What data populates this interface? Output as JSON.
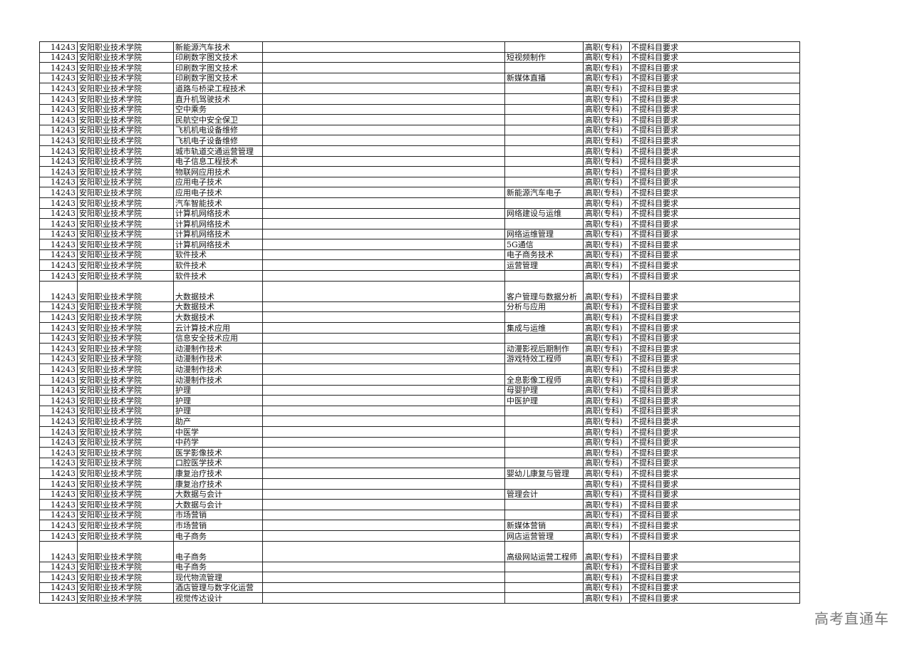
{
  "level": "高职(专科)",
  "requirement": "不提科目要求",
  "watermark": "高考直通车",
  "rows": [
    {
      "code": "14243",
      "school": "安阳职业技术学院",
      "major": "新能源汽车技术",
      "direction": ""
    },
    {
      "code": "14243",
      "school": "安阳职业技术学院",
      "major": "印刷数字图文技术",
      "direction": "短视频制作"
    },
    {
      "code": "14243",
      "school": "安阳职业技术学院",
      "major": "印刷数字图文技术",
      "direction": ""
    },
    {
      "code": "14243",
      "school": "安阳职业技术学院",
      "major": "印刷数字图文技术",
      "direction": "新媒体直播"
    },
    {
      "code": "14243",
      "school": "安阳职业技术学院",
      "major": "道路与桥梁工程技术",
      "direction": ""
    },
    {
      "code": "14243",
      "school": "安阳职业技术学院",
      "major": "直升机驾驶技术",
      "direction": ""
    },
    {
      "code": "14243",
      "school": "安阳职业技术学院",
      "major": "空中乘务",
      "direction": ""
    },
    {
      "code": "14243",
      "school": "安阳职业技术学院",
      "major": "民航空中安全保卫",
      "direction": ""
    },
    {
      "code": "14243",
      "school": "安阳职业技术学院",
      "major": "飞机机电设备维修",
      "direction": ""
    },
    {
      "code": "14243",
      "school": "安阳职业技术学院",
      "major": "飞机电子设备维修",
      "direction": ""
    },
    {
      "code": "14243",
      "school": "安阳职业技术学院",
      "major": "城市轨道交通运营管理",
      "direction": ""
    },
    {
      "code": "14243",
      "school": "安阳职业技术学院",
      "major": "电子信息工程技术",
      "direction": ""
    },
    {
      "code": "14243",
      "school": "安阳职业技术学院",
      "major": "物联网应用技术",
      "direction": ""
    },
    {
      "code": "14243",
      "school": "安阳职业技术学院",
      "major": "应用电子技术",
      "direction": ""
    },
    {
      "code": "14243",
      "school": "安阳职业技术学院",
      "major": "应用电子技术",
      "direction": "新能源汽车电子"
    },
    {
      "code": "14243",
      "school": "安阳职业技术学院",
      "major": "汽车智能技术",
      "direction": ""
    },
    {
      "code": "14243",
      "school": "安阳职业技术学院",
      "major": "计算机网络技术",
      "direction": "网络建设与运维"
    },
    {
      "code": "14243",
      "school": "安阳职业技术学院",
      "major": "计算机网络技术",
      "direction": ""
    },
    {
      "code": "14243",
      "school": "安阳职业技术学院",
      "major": "计算机网络技术",
      "direction": "网络运维管理"
    },
    {
      "code": "14243",
      "school": "安阳职业技术学院",
      "major": "计算机网络技术",
      "direction": "5G通信"
    },
    {
      "code": "14243",
      "school": "安阳职业技术学院",
      "major": "软件技术",
      "direction": "电子商务技术"
    },
    {
      "code": "14243",
      "school": "安阳职业技术学院",
      "major": "软件技术",
      "direction": "运营管理"
    },
    {
      "code": "14243",
      "school": "安阳职业技术学院",
      "major": "软件技术",
      "direction": ""
    },
    {
      "code": "14243",
      "school": "安阳职业技术学院",
      "major": "大数据技术",
      "direction": "客户管理与数据分析",
      "tall": true
    },
    {
      "code": "14243",
      "school": "安阳职业技术学院",
      "major": "大数据技术",
      "direction": "分析与应用"
    },
    {
      "code": "14243",
      "school": "安阳职业技术学院",
      "major": "大数据技术",
      "direction": ""
    },
    {
      "code": "14243",
      "school": "安阳职业技术学院",
      "major": "云计算技术应用",
      "direction": "集成与运维"
    },
    {
      "code": "14243",
      "school": "安阳职业技术学院",
      "major": "信息安全技术应用",
      "direction": ""
    },
    {
      "code": "14243",
      "school": "安阳职业技术学院",
      "major": "动漫制作技术",
      "direction": "动漫影视后期制作"
    },
    {
      "code": "14243",
      "school": "安阳职业技术学院",
      "major": "动漫制作技术",
      "direction": "游戏特效工程师"
    },
    {
      "code": "14243",
      "school": "安阳职业技术学院",
      "major": "动漫制作技术",
      "direction": ""
    },
    {
      "code": "14243",
      "school": "安阳职业技术学院",
      "major": "动漫制作技术",
      "direction": "全息影像工程师"
    },
    {
      "code": "14243",
      "school": "安阳职业技术学院",
      "major": "护理",
      "direction": "母婴护理"
    },
    {
      "code": "14243",
      "school": "安阳职业技术学院",
      "major": "护理",
      "direction": "中医护理"
    },
    {
      "code": "14243",
      "school": "安阳职业技术学院",
      "major": "护理",
      "direction": ""
    },
    {
      "code": "14243",
      "school": "安阳职业技术学院",
      "major": "助产",
      "direction": ""
    },
    {
      "code": "14243",
      "school": "安阳职业技术学院",
      "major": "中医学",
      "direction": ""
    },
    {
      "code": "14243",
      "school": "安阳职业技术学院",
      "major": "中药学",
      "direction": ""
    },
    {
      "code": "14243",
      "school": "安阳职业技术学院",
      "major": "医学影像技术",
      "direction": ""
    },
    {
      "code": "14243",
      "school": "安阳职业技术学院",
      "major": "口腔医学技术",
      "direction": ""
    },
    {
      "code": "14243",
      "school": "安阳职业技术学院",
      "major": "康复治疗技术",
      "direction": "婴幼儿康复与管理"
    },
    {
      "code": "14243",
      "school": "安阳职业技术学院",
      "major": "康复治疗技术",
      "direction": ""
    },
    {
      "code": "14243",
      "school": "安阳职业技术学院",
      "major": "大数据与会计",
      "direction": "管理会计"
    },
    {
      "code": "14243",
      "school": "安阳职业技术学院",
      "major": "大数据与会计",
      "direction": ""
    },
    {
      "code": "14243",
      "school": "安阳职业技术学院",
      "major": "市场营销",
      "direction": ""
    },
    {
      "code": "14243",
      "school": "安阳职业技术学院",
      "major": "市场营销",
      "direction": "新媒体营销"
    },
    {
      "code": "14243",
      "school": "安阳职业技术学院",
      "major": "电子商务",
      "direction": "网店运营管理"
    },
    {
      "code": "14243",
      "school": "安阳职业技术学院",
      "major": "电子商务",
      "direction": "高级网站运营工程师",
      "tall": true
    },
    {
      "code": "14243",
      "school": "安阳职业技术学院",
      "major": "电子商务",
      "direction": ""
    },
    {
      "code": "14243",
      "school": "安阳职业技术学院",
      "major": "现代物流管理",
      "direction": ""
    },
    {
      "code": "14243",
      "school": "安阳职业技术学院",
      "major": "酒店管理与数字化运营",
      "direction": ""
    },
    {
      "code": "14243",
      "school": "安阳职业技术学院",
      "major": "视觉传达设计",
      "direction": ""
    }
  ]
}
